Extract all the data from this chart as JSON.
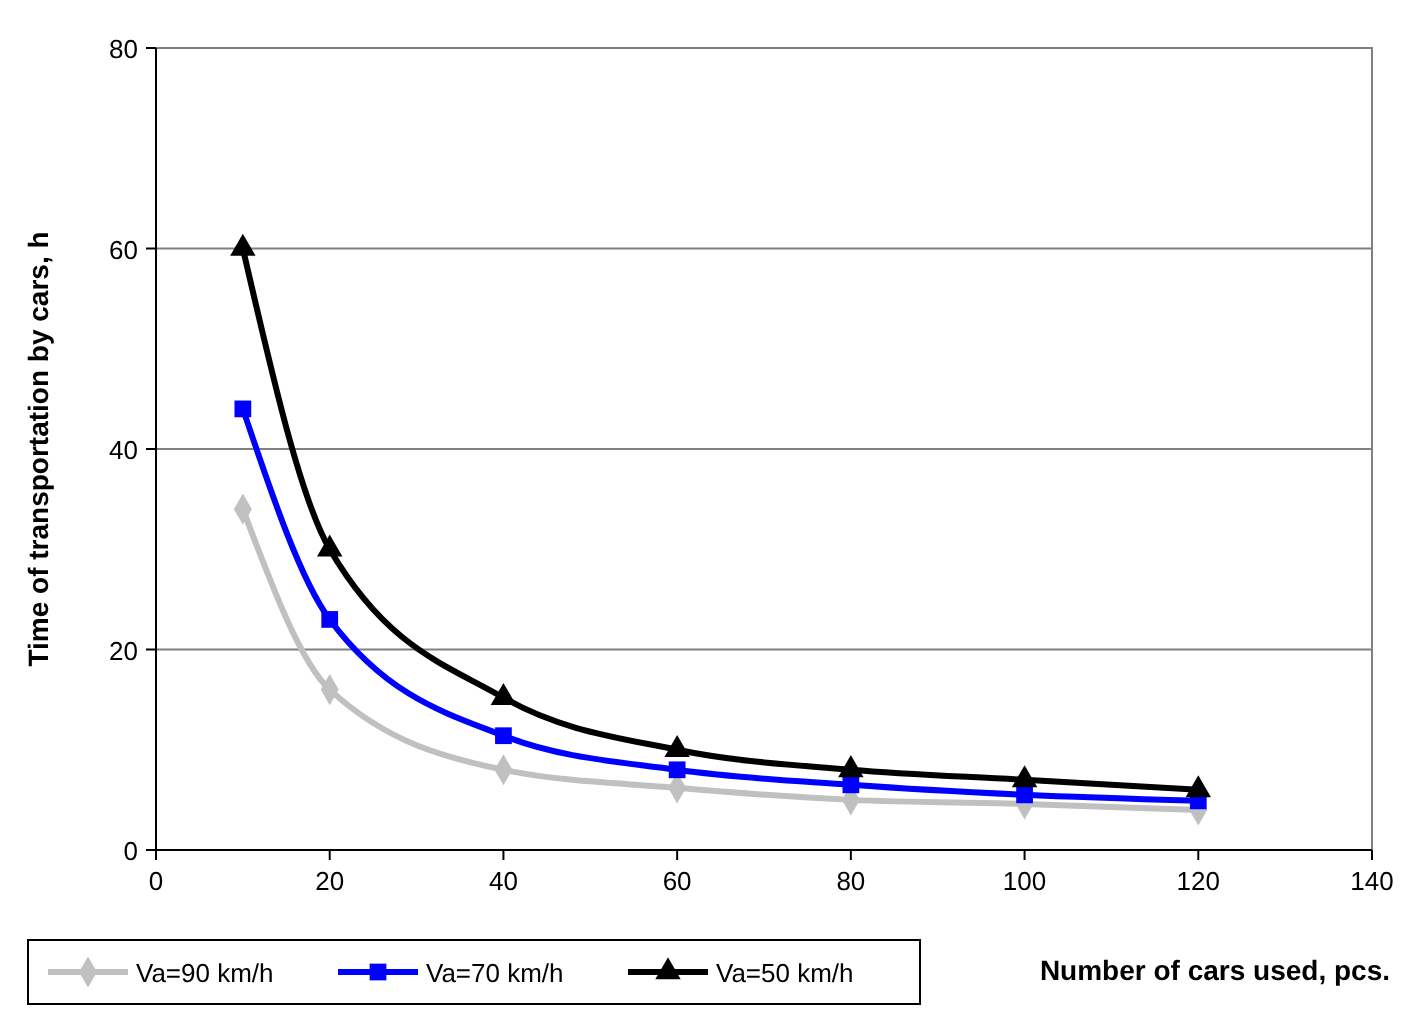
{
  "chart_data": {
    "type": "line",
    "xlabel": "Number of cars used, pcs.",
    "ylabel": "Time of transportation by cars, h",
    "xlim": [
      0,
      140
    ],
    "xticks": [
      0,
      20,
      40,
      60,
      80,
      100,
      120,
      140
    ],
    "ylim": [
      0,
      80
    ],
    "yticks": [
      0,
      20,
      40,
      60,
      80
    ],
    "grid": "y",
    "legend": "bottom",
    "x": [
      10,
      20,
      40,
      60,
      80,
      100,
      120
    ],
    "series": [
      {
        "name": "Va=90 km/h",
        "color": "#c0c0c0",
        "marker": "diamond",
        "values": [
          34,
          16,
          8,
          6.2,
          5,
          4.6,
          4
        ]
      },
      {
        "name": "Va=70 km/h",
        "color": "#0000ff",
        "marker": "square",
        "values": [
          44,
          23,
          11.4,
          8,
          6.5,
          5.5,
          4.9
        ]
      },
      {
        "name": "Va=50 km/h",
        "color": "#000000",
        "marker": "triangle",
        "values": [
          60,
          30,
          15.2,
          10,
          8,
          7,
          6
        ]
      }
    ]
  }
}
